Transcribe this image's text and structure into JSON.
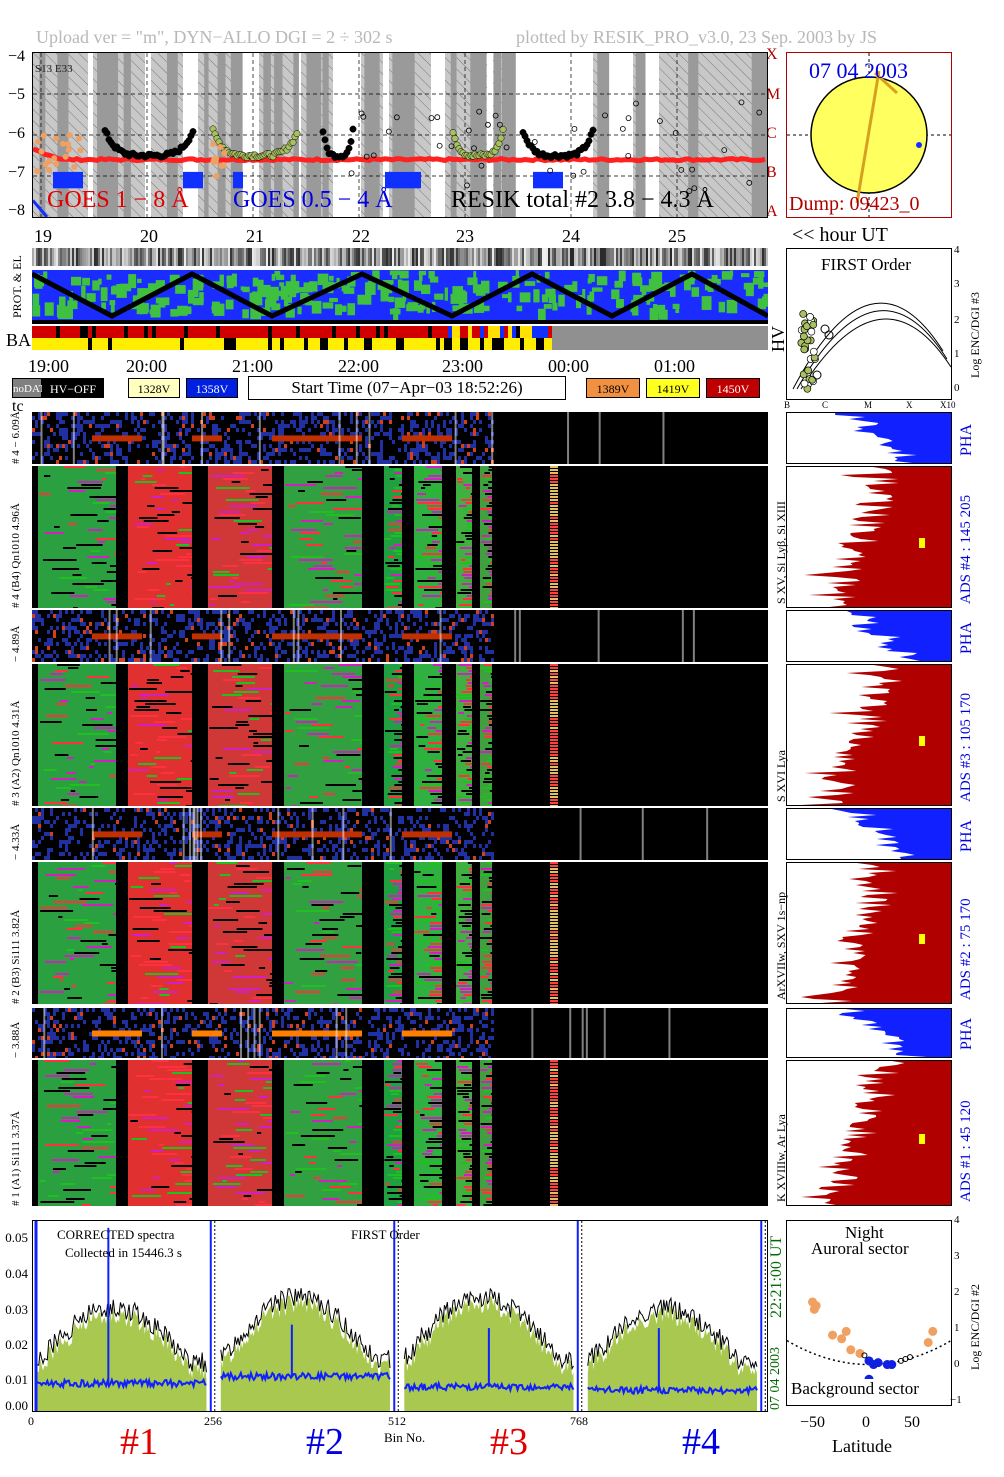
{
  "header": {
    "upload": "Upload ver = \"m\", DYN−ALLO DGI =   2 ÷ 302 s",
    "plotted": "plotted by RESIK_PRO_v3.0, 23 Sep. 2003 by JS"
  },
  "goes": {
    "yticks": [
      "−4",
      "−5",
      "−6",
      "−7",
      "−8"
    ],
    "class_labels": [
      "X",
      "M",
      "C",
      "B",
      "A"
    ],
    "corner": "S13 E33",
    "label1": "GOES 1 − 8 Å",
    "label2": "GOES 0.5 − 4 Å",
    "label3": "RESIK total #2  3.8 − 4.3 Å",
    "hours": [
      "19",
      "20",
      "21",
      "22",
      "23",
      "24",
      "25"
    ],
    "hour_ut": "<< hour UT",
    "colors": {
      "goes18": "#ff2020",
      "goes054": "#1030ff",
      "resik": "#000000",
      "orange": "#f0a060",
      "olive": "#a8c060"
    }
  },
  "orbit": {
    "date": "07 04 2003",
    "dump": "Dump: 09423_0"
  },
  "status_rows": {
    "prot_el": "PROT. & EL",
    "ba": "BA",
    "hv": "HV",
    "times": [
      "19:00",
      "20:00",
      "21:00",
      "22:00",
      "23:00",
      "00:00",
      "01:00"
    ]
  },
  "legend": {
    "nodata": "noDATA",
    "hvoff": "HV−OFF",
    "v1328": "1328V",
    "v1358": "1358V",
    "start": "Start Time (07−Apr−03 18:52:26)",
    "v1389": "1389V",
    "v1419": "1419V",
    "v1450": "1450V",
    "tc": "tc"
  },
  "first_order_plot": {
    "title": "FIRST Order",
    "ylabel": "Log ENC/DGI #3",
    "yticks": [
      "4",
      "3",
      "2",
      "1",
      "0"
    ],
    "xticks": [
      "B",
      "C",
      "M",
      "X",
      "X10"
    ]
  },
  "channels": [
    {
      "pha_label": "# 4 − 6.09Å",
      "main_label": "# 4 (B4) Qn1010 4.96Å",
      "lines": "S XV, Si Lyβ, Si XIII",
      "ads": "ADS #4 :   145 205",
      "pha": "PHA"
    },
    {
      "pha_label": "− 4.89Å",
      "main_label": "# 3 (A2) Qn1010 4.31Å",
      "lines": "S XVI Lya",
      "ads": "ADS #3 :   105 170",
      "pha": "PHA"
    },
    {
      "pha_label": "− 4.33Å",
      "main_label": "# 2 (B3) Si111 3.82Å",
      "lines": "ArXVIIw, SXV 1s−np",
      "ads": "ADS #2 :   75 170",
      "pha": "PHA"
    },
    {
      "pha_label": "− 3.88Å",
      "main_label": "# 1 (A1) Si111 3.37Å",
      "lines": "K XVIIIw, Ar Lya",
      "ads": "ADS #1 :   45 120",
      "pha": "PHA"
    }
  ],
  "spectrum": {
    "label1": "CORRECTED spectra",
    "label2": "Collected in 15446.3 s",
    "label3": "FIRST Order",
    "date_side": "07 04 2003",
    "time_side": "22:21:00 UT",
    "xlabel": "Bin No.",
    "xticks": [
      "0",
      "256",
      "512",
      "768"
    ],
    "channel_labels": [
      "#1",
      "#2",
      "#3",
      "#4"
    ]
  },
  "latitude_plot": {
    "title1": "Night",
    "title2": "Auroral sector",
    "bottom": "Background sector",
    "xlabel": "Latitude",
    "ylabel": "Log ENC/DGI #2",
    "yticks": [
      "4",
      "3",
      "2",
      "1",
      "0",
      "−1"
    ],
    "xticks": [
      "−50",
      "0",
      "50"
    ]
  },
  "chart_data": {
    "type": "scatter",
    "title": "",
    "x_axis": "hour UT",
    "hours": [
      19,
      20,
      21,
      22,
      23,
      24,
      25
    ],
    "goes_log_flux_range": [
      -8,
      -4
    ],
    "goes_1_8A_level": -6.6,
    "spectrum": {
      "type": "area",
      "xlabel": "Bin No.",
      "xlim": [
        0,
        1024
      ],
      "ylim": [
        0,
        0.055
      ],
      "yticks": [
        0.0,
        0.01,
        0.02,
        0.03,
        0.04,
        0.05
      ],
      "segment_means_green": [
        0.02,
        0.022,
        0.022,
        0.02
      ],
      "segment_means_blue": [
        0.008,
        0.01,
        0.007,
        0.006
      ]
    },
    "latitude": {
      "type": "scatter",
      "xlim": [
        -90,
        90
      ],
      "ylim": [
        -1,
        4
      ],
      "xticks": [
        -50,
        0,
        50
      ],
      "orange": [
        [
          -62,
          1.8
        ],
        [
          -58,
          1.7
        ],
        [
          -60,
          1.6
        ],
        [
          -40,
          0.9
        ],
        [
          -30,
          0.8
        ],
        [
          -20,
          0.5
        ],
        [
          -25,
          1.0
        ],
        [
          70,
          1.0
        ],
        [
          65,
          0.7
        ],
        [
          -10,
          0.4
        ]
      ],
      "blue": [
        [
          0,
          0.2
        ],
        [
          10,
          0.15
        ],
        [
          20,
          0.1
        ],
        [
          25,
          0.1
        ],
        [
          0,
          -0.3
        ],
        [
          5,
          0.1
        ]
      ]
    }
  }
}
